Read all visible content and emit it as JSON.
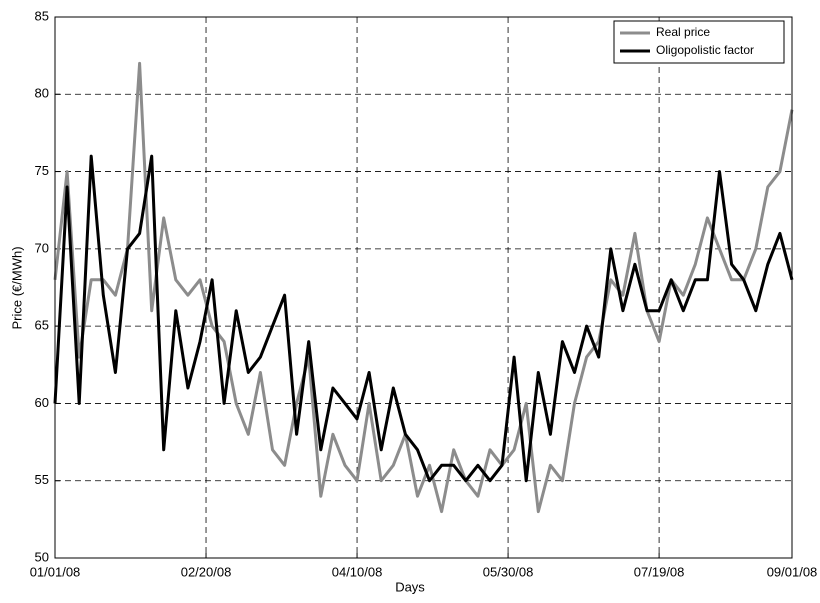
{
  "chart_data": {
    "type": "line",
    "x_label": "Days",
    "y_label": "Price (€/MWh)",
    "x": [
      "01/01/08",
      "01/05/08",
      "01/09/08",
      "01/13/08",
      "01/17/08",
      "01/21/08",
      "01/25/08",
      "01/29/08",
      "02/02/08",
      "02/06/08",
      "02/10/08",
      "02/14/08",
      "02/18/08",
      "02/22/08",
      "02/26/08",
      "03/01/08",
      "03/05/08",
      "03/09/08",
      "03/13/08",
      "03/17/08",
      "03/21/08",
      "03/25/08",
      "03/29/08",
      "04/02/08",
      "04/06/08",
      "04/10/08",
      "04/14/08",
      "04/18/08",
      "04/22/08",
      "04/26/08",
      "04/30/08",
      "05/04/08",
      "05/08/08",
      "05/12/08",
      "05/16/08",
      "05/20/08",
      "05/24/08",
      "05/28/08",
      "06/01/08",
      "06/05/08",
      "06/09/08",
      "06/13/08",
      "06/17/08",
      "06/21/08",
      "06/25/08",
      "06/29/08",
      "07/03/08",
      "07/07/08",
      "07/11/08",
      "07/15/08",
      "07/19/08",
      "07/23/08",
      "07/27/08",
      "07/31/08",
      "08/04/08",
      "08/08/08",
      "08/12/08",
      "08/16/08",
      "08/20/08",
      "08/24/08",
      "08/28/08",
      "09/01/08"
    ],
    "series": [
      {
        "name": "Real price",
        "color": "#8c8c8c",
        "width": 3,
        "values": [
          68,
          75,
          63,
          68,
          68,
          67,
          70,
          82,
          66,
          72,
          68,
          67,
          68,
          65,
          64,
          60,
          58,
          62,
          57,
          56,
          60,
          63,
          54,
          58,
          56,
          55,
          60,
          55,
          56,
          58,
          54,
          56,
          53,
          57,
          55,
          54,
          57,
          56,
          57,
          60,
          53,
          56,
          55,
          60,
          63,
          64,
          68,
          67,
          71,
          66,
          64,
          68,
          67,
          69,
          72,
          70,
          68,
          68,
          70,
          74,
          75,
          79
        ]
      },
      {
        "name": "Oligopolistic factor",
        "color": "#000000",
        "width": 3,
        "values": [
          60,
          74,
          60,
          76,
          67,
          62,
          70,
          71,
          76,
          57,
          66,
          61,
          64,
          68,
          60,
          66,
          62,
          63,
          65,
          67,
          58,
          64,
          57,
          61,
          60,
          59,
          62,
          57,
          61,
          58,
          57,
          55,
          56,
          56,
          55,
          56,
          55,
          56,
          63,
          55,
          62,
          58,
          64,
          62,
          65,
          63,
          70,
          66,
          69,
          66,
          66,
          68,
          66,
          68,
          68,
          75,
          69,
          68,
          66,
          69,
          71,
          68
        ]
      }
    ],
    "xlim": [
      "01/01/08",
      "09/01/08"
    ],
    "xticks": [
      "01/01/08",
      "02/20/08",
      "04/10/08",
      "05/30/08",
      "07/19/08",
      "09/01/08"
    ],
    "ylim": [
      50,
      85
    ],
    "yticks": [
      50,
      55,
      60,
      65,
      70,
      75,
      80,
      85
    ],
    "grid": true,
    "legend": "upper right"
  }
}
